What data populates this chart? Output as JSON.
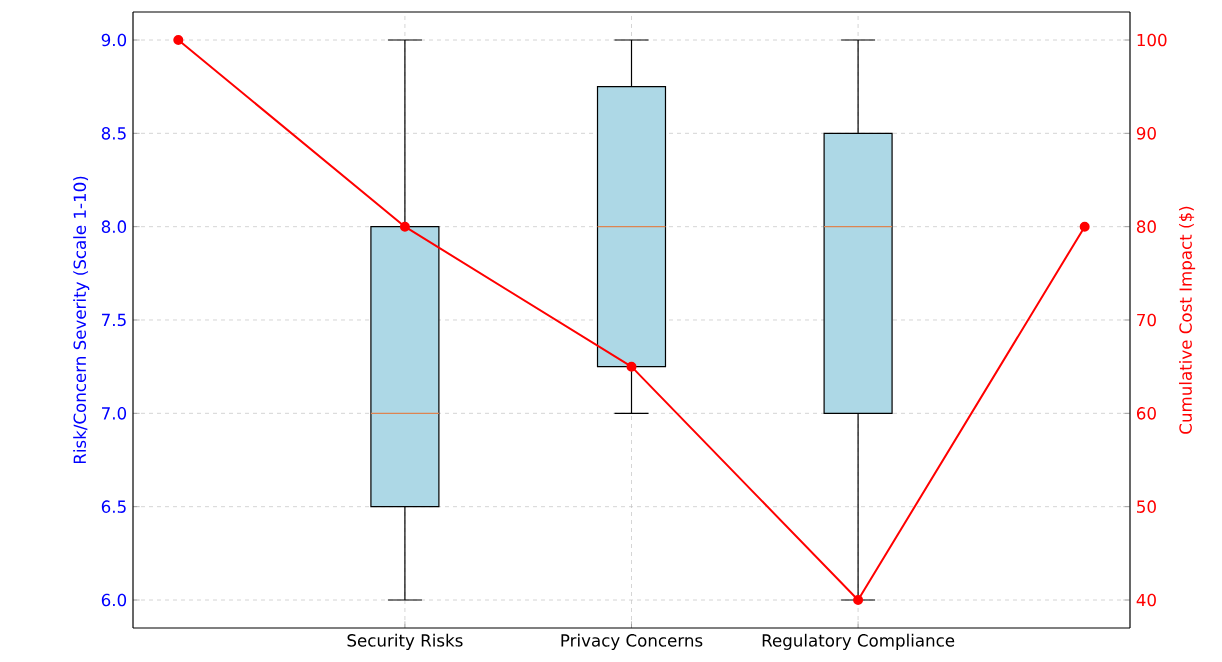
{
  "chart_data": {
    "type": "box",
    "categories": [
      null,
      "Security Risks",
      "Privacy Concerns",
      "Regulatory Compliance",
      null
    ],
    "ylabel": "Risk/Concern Severity (Scale 1-10)",
    "y2label": "Cumulative Cost Impact ($)",
    "ylim": [
      5.85,
      9.15
    ],
    "yticks": [
      {
        "value": 6,
        "label": "6.0"
      },
      {
        "value": 6.5,
        "label": "6.5"
      },
      {
        "value": 7,
        "label": "7.0"
      },
      {
        "value": 7.5,
        "label": "7.5"
      },
      {
        "value": 8,
        "label": "8.0"
      },
      {
        "value": 8.5,
        "label": "8.5"
      },
      {
        "value": 9,
        "label": "9.0"
      }
    ],
    "y2lim": [
      37,
      103
    ],
    "y2ticks": [
      40,
      50,
      60,
      70,
      80,
      90,
      100
    ],
    "grid": true,
    "marker": "circle",
    "line_style": "solid",
    "series": [
      {
        "color": "#add8e6",
        "boxes": [
          null,
          {
            "low": 6,
            "q1": 6.5,
            "median": 7,
            "q3": 8,
            "high": 9
          },
          {
            "low": 7,
            "q1": 7.25,
            "median": 8,
            "q3": 8.75,
            "high": 9
          },
          {
            "low": 6,
            "q1": 7,
            "median": 8,
            "q3": 8.5,
            "high": 9
          },
          null
        ]
      },
      {
        "type": "line",
        "color": "#ff0000",
        "axis": "y2",
        "values": [
          100,
          80,
          65,
          40,
          80
        ]
      }
    ]
  }
}
